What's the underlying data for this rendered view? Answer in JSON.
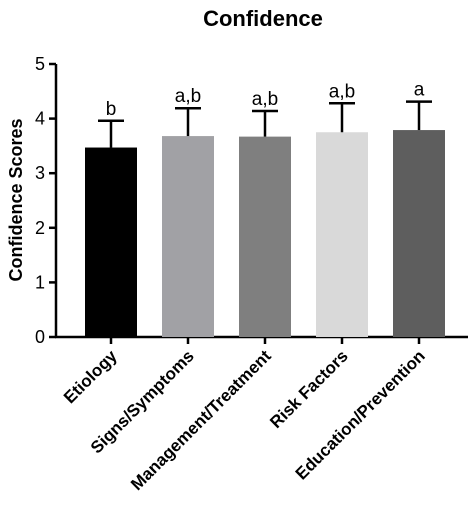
{
  "chart_data": {
    "type": "bar",
    "title": "Confidence",
    "xlabel": "",
    "ylabel": "Confidence Scores",
    "ylim": [
      0,
      5
    ],
    "yticks": [
      "0",
      "1",
      "2",
      "3",
      "4",
      "5"
    ],
    "grid": false,
    "categories": [
      "Etiology",
      "Signs/Symptoms",
      "Management/Treatment",
      "Risk Factors",
      "Education/Prevention"
    ],
    "values": [
      3.47,
      3.68,
      3.67,
      3.75,
      3.79
    ],
    "errors": [
      0.49,
      0.51,
      0.47,
      0.53,
      0.52
    ],
    "significance_labels": [
      "b",
      "a,b",
      "a,b",
      "a,b",
      "a"
    ],
    "colors": [
      "#000000",
      "#a1a1a5",
      "#7f7f7f",
      "#d9d9d9",
      "#5e5e5e"
    ]
  }
}
